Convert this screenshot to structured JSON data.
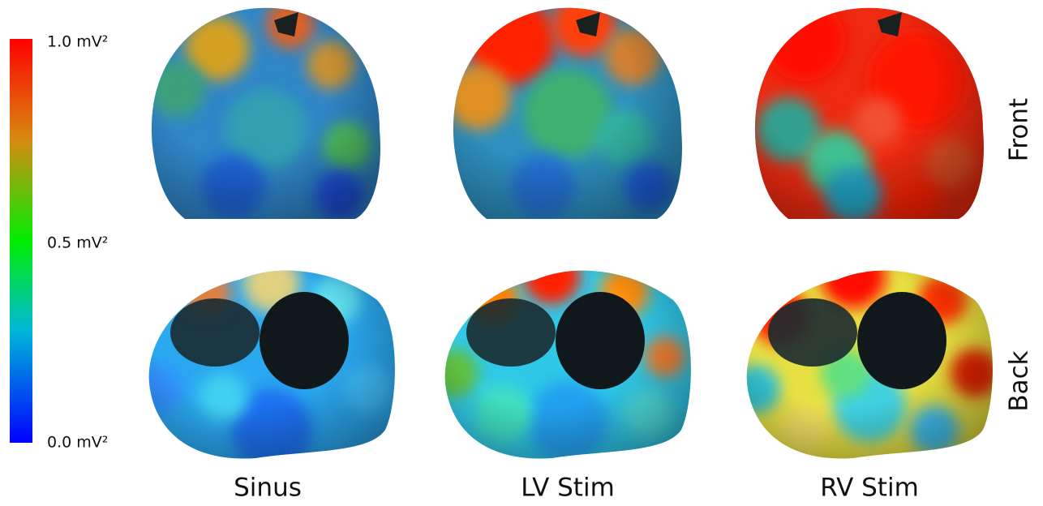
{
  "colorbar": {
    "labels": [
      "1.0 mV²",
      "0.5 mV²",
      "0.0 mV²"
    ]
  },
  "columns": [
    "Sinus",
    "LV Stim",
    "RV Stim"
  ],
  "rows": [
    "Front",
    "Back"
  ]
}
